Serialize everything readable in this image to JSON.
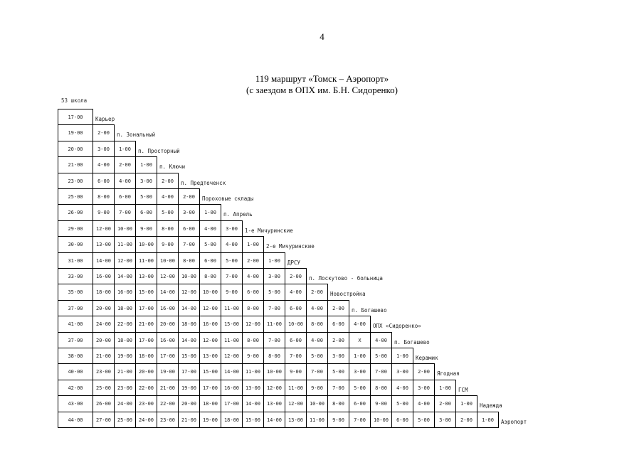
{
  "page": {
    "number": "4"
  },
  "title": {
    "line1": "119 маршрут «Томск – Аэропорт»",
    "line2": "(с заездом в ОПХ им. Б.Н. Сидоренко)"
  },
  "start_stop": "53 школа",
  "stops": [
    "Карьер",
    "п. Зональный",
    "п. Просторный",
    "п. Ключи",
    "п. Предтеченск",
    "Пороховые склады",
    "п. Апрель",
    "1-е Мичуринские",
    "2-е Мичуринские",
    "ДРСУ",
    "п. Лоскутово - больница",
    "Новостройка",
    "п. Богашево",
    "ОПХ «Сидоренко»",
    "п. Богашево",
    "Керамик",
    "Ягодная",
    "ГСМ",
    "Надежда",
    "Аэропорт"
  ],
  "rows": [
    [
      "17-00"
    ],
    [
      "19-00",
      "2-00"
    ],
    [
      "20-00",
      "3-00",
      "1-00"
    ],
    [
      "21-00",
      "4-00",
      "2-00",
      "1-00"
    ],
    [
      "23-00",
      "6-00",
      "4-00",
      "3-00",
      "2-00"
    ],
    [
      "25-00",
      "8-00",
      "6-00",
      "5-00",
      "4-00",
      "2-00"
    ],
    [
      "26-00",
      "9-00",
      "7-00",
      "6-00",
      "5-00",
      "3-00",
      "1-00"
    ],
    [
      "29-00",
      "12-00",
      "10-00",
      "9-00",
      "8-00",
      "6-00",
      "4-00",
      "3-00"
    ],
    [
      "30-00",
      "13-00",
      "11-00",
      "10-00",
      "9-00",
      "7-00",
      "5-00",
      "4-00",
      "1-00"
    ],
    [
      "31-00",
      "14-00",
      "12-00",
      "11-00",
      "10-00",
      "8-00",
      "6-00",
      "5-00",
      "2-00",
      "1-00"
    ],
    [
      "33-00",
      "16-00",
      "14-00",
      "13-00",
      "12-00",
      "10-00",
      "8-00",
      "7-00",
      "4-00",
      "3-00",
      "2-00"
    ],
    [
      "35-00",
      "18-00",
      "16-00",
      "15-00",
      "14-00",
      "12-00",
      "10-00",
      "9-00",
      "6-00",
      "5-00",
      "4-00",
      "2-00"
    ],
    [
      "37-00",
      "20-00",
      "18-00",
      "17-00",
      "16-00",
      "14-00",
      "12-00",
      "11-00",
      "8-00",
      "7-00",
      "6-00",
      "4-00",
      "2-00"
    ],
    [
      "41-00",
      "24-00",
      "22-00",
      "21-00",
      "20-00",
      "18-00",
      "16-00",
      "15-00",
      "12-00",
      "11-00",
      "10-00",
      "8-00",
      "6-00",
      "4-00"
    ],
    [
      "37-00",
      "20-00",
      "18-00",
      "17-00",
      "16-00",
      "14-00",
      "12-00",
      "11-00",
      "8-00",
      "7-00",
      "6-00",
      "4-00",
      "2-00",
      "Х",
      "4-00"
    ],
    [
      "38-00",
      "21-00",
      "19-00",
      "18-00",
      "17-00",
      "15-00",
      "13-00",
      "12-00",
      "9-00",
      "8-00",
      "7-00",
      "5-00",
      "3-00",
      "1-00",
      "5-00",
      "1-00"
    ],
    [
      "40-00",
      "23-00",
      "21-00",
      "20-00",
      "19-00",
      "17-00",
      "15-00",
      "14-00",
      "11-00",
      "10-00",
      "9-00",
      "7-00",
      "5-00",
      "3-00",
      "7-00",
      "3-00",
      "2-00"
    ],
    [
      "42-00",
      "25-00",
      "23-00",
      "22-00",
      "21-00",
      "19-00",
      "17-00",
      "16-00",
      "13-00",
      "12-00",
      "11-00",
      "9-00",
      "7-00",
      "5-00",
      "8-00",
      "4-00",
      "3-00",
      "1-00"
    ],
    [
      "43-00",
      "26-00",
      "24-00",
      "23-00",
      "22-00",
      "20-00",
      "18-00",
      "17-00",
      "14-00",
      "13-00",
      "12-00",
      "10-00",
      "8-00",
      "6-00",
      "9-00",
      "5-00",
      "4-00",
      "2-00",
      "1-00"
    ],
    [
      "44-00",
      "27-00",
      "25-00",
      "24-00",
      "23-00",
      "21-00",
      "19-00",
      "18-00",
      "15-00",
      "14-00",
      "13-00",
      "11-00",
      "9-00",
      "7-00",
      "10-00",
      "6-00",
      "5-00",
      "3-00",
      "2-00",
      "1-00"
    ]
  ]
}
